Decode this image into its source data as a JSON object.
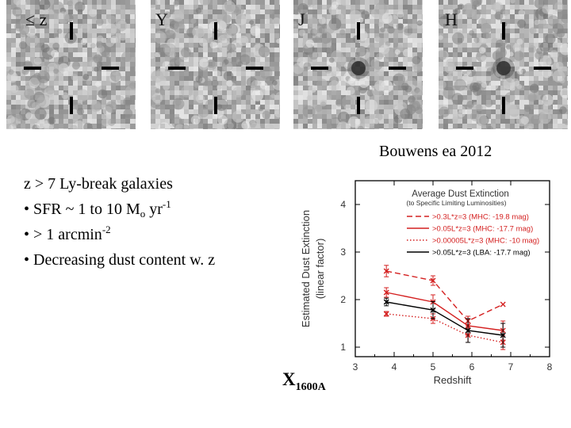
{
  "panels": [
    {
      "band": "≤ z",
      "source_visible": false
    },
    {
      "band": "Y",
      "source_visible": false
    },
    {
      "band": "J",
      "source_visible": true
    },
    {
      "band": "H",
      "source_visible": true
    }
  ],
  "citation": "Bouwens ea 2012",
  "bullets": {
    "heading": "z > 7 Ly-break galaxies",
    "sfr_prefix": "• SFR ~ 1 to 10 M",
    "sfr_sub": "o",
    "sfr_mid": " yr",
    "sfr_sup": "-1",
    "size_prefix": "• > 1 arcmin",
    "size_sup": "-2",
    "dust": "• Decreasing dust content w. z"
  },
  "big_label": {
    "main": "X",
    "sub": "1600A"
  },
  "chart_data": {
    "type": "line",
    "title": "Average Dust Extinction",
    "subtitle": "(to Specific Limiting Luminosities)",
    "xlabel": "Redshift",
    "ylabel_line1": "Estimated Dust Extinction",
    "ylabel_line2": "(linear factor)",
    "xlim": [
      3,
      8
    ],
    "ylim": [
      0.8,
      4.5
    ],
    "xticks": [
      "3",
      "4",
      "5",
      "6",
      "7",
      "8"
    ],
    "yticks": [
      "1",
      "2",
      "3",
      "4"
    ],
    "legend_position": "top-right",
    "series": [
      {
        "name": ">0.3L*z=3 (MHC: -19.8 mag)",
        "color": "#d42020",
        "dash": "dashed",
        "x": [
          3.8,
          5.0,
          5.9,
          6.8
        ],
        "y": [
          2.6,
          2.4,
          1.55,
          1.9
        ],
        "err": [
          0.12,
          0.1,
          0.1,
          0.0
        ]
      },
      {
        "name": ">0.05L*z=3 (MHC: -17.7 mag)",
        "color": "#d42020",
        "dash": "solid",
        "x": [
          3.8,
          5.0,
          5.9,
          6.8
        ],
        "y": [
          2.15,
          1.95,
          1.45,
          1.35
        ],
        "err": [
          0.1,
          0.15,
          0.2,
          0.2
        ]
      },
      {
        "name": ">0.00005L*z=3 (MHC: -10 mag)",
        "color": "#d42020",
        "dash": "dotted",
        "x": [
          3.8,
          5.0,
          5.9,
          6.8
        ],
        "y": [
          1.7,
          1.6,
          1.25,
          1.1
        ],
        "err": [
          0.05,
          0.1,
          0.15,
          0.15
        ]
      },
      {
        "name": ">0.05L*z=3 (LBA: -17.7 mag)",
        "color": "#000000",
        "dash": "solid",
        "x": [
          3.8,
          5.0,
          5.9,
          6.8
        ],
        "y": [
          1.95,
          1.78,
          1.35,
          1.25
        ],
        "err": [
          0.08,
          0.18,
          0.25,
          0.25
        ]
      }
    ]
  }
}
